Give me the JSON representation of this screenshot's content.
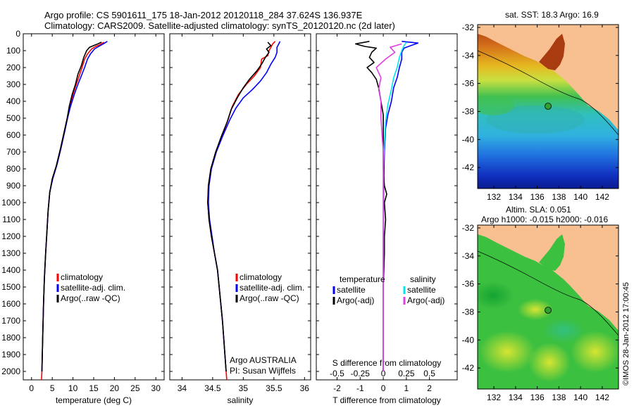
{
  "header": {
    "title_line1": "Argo profile: CS 5901611_175 18-Jan-2012 20120118_284 37.624S 136.937E",
    "title_line2": "Climatology: CARS2009. Satellite-adjusted climatology: synTS_20120120.nc (2d later)"
  },
  "watermark": "©IMOS 28-Jan-2012 17:00:45",
  "colors": {
    "climatology": "#ff0000",
    "satellite": "#0000ff",
    "argo": "#000000",
    "sal_satellite": "#00e5ee",
    "sal_argo": "#e040e0",
    "land": "#f8c090"
  },
  "depth_ticks": [
    0,
    100,
    200,
    300,
    400,
    500,
    600,
    700,
    800,
    900,
    1000,
    1100,
    1200,
    1300,
    1400,
    1500,
    1600,
    1700,
    1800,
    1900,
    2000
  ],
  "chart_data": [
    {
      "type": "line",
      "id": "temperature",
      "xlabel": "temperature (deg C)",
      "ylabel": "",
      "xlim": [
        -2,
        32
      ],
      "ylim": [
        2050,
        0
      ],
      "xticks": [
        0,
        5,
        10,
        15,
        20,
        25,
        30
      ],
      "legend": [
        "climatology",
        "satellite-adj. clim.",
        "Argo(..raw -QC)"
      ],
      "legend_position": "lower-center",
      "series": [
        {
          "name": "climatology",
          "color": "#ff0000",
          "points": [
            [
              17.5,
              50
            ],
            [
              16.5,
              65
            ],
            [
              15.5,
              75
            ],
            [
              14.5,
              90
            ],
            [
              13.5,
              120
            ],
            [
              12.8,
              150
            ],
            [
              12.2,
              200
            ],
            [
              11.5,
              250
            ],
            [
              10.8,
              300
            ],
            [
              10.0,
              360
            ],
            [
              9.2,
              430
            ],
            [
              8.6,
              500
            ],
            [
              7.9,
              580
            ],
            [
              7.0,
              680
            ],
            [
              6.0,
              780
            ],
            [
              5.0,
              860
            ],
            [
              4.4,
              940
            ],
            [
              4.0,
              1050
            ],
            [
              3.7,
              1180
            ],
            [
              3.4,
              1300
            ],
            [
              3.1,
              1450
            ],
            [
              2.9,
              1600
            ],
            [
              2.7,
              1800
            ],
            [
              2.5,
              2000
            ],
            [
              2.4,
              2050
            ]
          ]
        },
        {
          "name": "satellite-adj. clim.",
          "color": "#0000ff",
          "points": [
            [
              18.3,
              45
            ],
            [
              17.3,
              60
            ],
            [
              16.2,
              75
            ],
            [
              15.2,
              90
            ],
            [
              14.2,
              120
            ],
            [
              13.5,
              150
            ],
            [
              12.8,
              200
            ],
            [
              12.0,
              250
            ],
            [
              11.2,
              300
            ],
            [
              10.3,
              360
            ],
            [
              9.4,
              430
            ],
            [
              8.7,
              500
            ],
            [
              8.0,
              580
            ],
            [
              7.1,
              680
            ],
            [
              6.1,
              780
            ],
            [
              5.1,
              860
            ],
            [
              4.4,
              940
            ],
            [
              4.0,
              1050
            ],
            [
              3.7,
              1180
            ],
            [
              3.4,
              1300
            ],
            [
              3.1,
              1450
            ],
            [
              2.9,
              1600
            ],
            [
              2.7,
              1800
            ],
            [
              2.5,
              2000
            ]
          ]
        },
        {
          "name": "Argo(..raw -QC)",
          "color": "#000000",
          "points": [
            [
              16.9,
              50
            ],
            [
              16.0,
              60
            ],
            [
              15.0,
              70
            ],
            [
              14.0,
              80
            ],
            [
              13.3,
              100
            ],
            [
              12.6,
              140
            ],
            [
              12.0,
              190
            ],
            [
              11.2,
              240
            ],
            [
              10.6,
              300
            ],
            [
              9.8,
              360
            ],
            [
              9.1,
              430
            ],
            [
              8.6,
              500
            ],
            [
              7.9,
              580
            ],
            [
              7.0,
              680
            ],
            [
              6.0,
              780
            ],
            [
              5.0,
              860
            ],
            [
              4.4,
              940
            ],
            [
              4.0,
              1050
            ],
            [
              3.7,
              1180
            ],
            [
              3.4,
              1300
            ],
            [
              3.1,
              1450
            ],
            [
              2.9,
              1600
            ],
            [
              2.7,
              1800
            ],
            [
              2.5,
              2000
            ]
          ]
        }
      ]
    },
    {
      "type": "line",
      "id": "salinity",
      "xlabel": "salinity",
      "ylabel": "",
      "xlim": [
        33.8,
        36.1
      ],
      "ylim": [
        2050,
        0
      ],
      "xticks": [
        34,
        34.5,
        35,
        35.5,
        36
      ],
      "xtick_labels": [
        "34",
        "34.5",
        "35",
        "35.5",
        "36"
      ],
      "legend": [
        "climatology",
        "satellite-adj. clim.",
        "Argo(..raw -QC)"
      ],
      "legend_position": "lower-right",
      "annotation": [
        "Argo AUSTRALIA",
        "PI: Susan Wijffels"
      ],
      "series": [
        {
          "name": "climatology",
          "color": "#ff0000",
          "points": [
            [
              35.52,
              45
            ],
            [
              35.48,
              60
            ],
            [
              35.45,
              80
            ],
            [
              35.42,
              100
            ],
            [
              35.4,
              130
            ],
            [
              35.3,
              150
            ],
            [
              35.28,
              200
            ],
            [
              35.18,
              250
            ],
            [
              35.05,
              300
            ],
            [
              34.92,
              360
            ],
            [
              34.82,
              430
            ],
            [
              34.76,
              500
            ],
            [
              34.66,
              600
            ],
            [
              34.55,
              700
            ],
            [
              34.47,
              800
            ],
            [
              34.43,
              900
            ],
            [
              34.42,
              1000
            ],
            [
              34.44,
              1100
            ],
            [
              34.48,
              1200
            ],
            [
              34.53,
              1300
            ],
            [
              34.58,
              1400
            ],
            [
              34.62,
              1550
            ],
            [
              34.66,
              1700
            ],
            [
              34.69,
              1850
            ],
            [
              34.72,
              2000
            ],
            [
              34.73,
              2050
            ]
          ]
        },
        {
          "name": "satellite-adj. clim.",
          "color": "#0000ff",
          "points": [
            [
              35.6,
              45
            ],
            [
              35.58,
              60
            ],
            [
              35.55,
              80
            ],
            [
              35.55,
              110
            ],
            [
              35.52,
              140
            ],
            [
              35.45,
              180
            ],
            [
              35.38,
              230
            ],
            [
              35.28,
              280
            ],
            [
              35.15,
              330
            ],
            [
              35.0,
              380
            ],
            [
              34.88,
              440
            ],
            [
              34.78,
              510
            ],
            [
              34.67,
              600
            ],
            [
              34.56,
              700
            ],
            [
              34.48,
              800
            ],
            [
              34.44,
              900
            ],
            [
              34.43,
              1000
            ],
            [
              34.45,
              1100
            ],
            [
              34.49,
              1200
            ],
            [
              34.53,
              1300
            ],
            [
              34.58,
              1400
            ],
            [
              34.62,
              1550
            ],
            [
              34.66,
              1700
            ],
            [
              34.69,
              1850
            ],
            [
              34.72,
              2000
            ]
          ]
        },
        {
          "name": "Argo(..raw -QC)",
          "color": "#000000",
          "points": [
            [
              35.4,
              50
            ],
            [
              35.45,
              70
            ],
            [
              35.38,
              90
            ],
            [
              35.42,
              110
            ],
            [
              35.36,
              140
            ],
            [
              35.3,
              180
            ],
            [
              35.22,
              220
            ],
            [
              35.1,
              270
            ],
            [
              35.0,
              320
            ],
            [
              34.9,
              380
            ],
            [
              34.8,
              450
            ],
            [
              34.74,
              520
            ],
            [
              34.64,
              610
            ],
            [
              34.55,
              700
            ],
            [
              34.47,
              800
            ],
            [
              34.43,
              900
            ],
            [
              34.42,
              1000
            ],
            [
              34.44,
              1100
            ],
            [
              34.48,
              1200
            ],
            [
              34.53,
              1300
            ],
            [
              34.58,
              1400
            ],
            [
              34.62,
              1550
            ],
            [
              34.66,
              1700
            ],
            [
              34.69,
              1850
            ],
            [
              34.72,
              2000
            ]
          ]
        }
      ]
    },
    {
      "type": "line",
      "id": "difference",
      "xlabel": "T difference from climatology",
      "xlabel_top": "S difference from climatology",
      "xlim": [
        -2.9,
        3.2
      ],
      "ylim": [
        2050,
        0
      ],
      "xticks": [
        -2,
        -1,
        0,
        1,
        2
      ],
      "xticks_top": [
        -0.5,
        -0.25,
        0,
        0.25,
        0.5
      ],
      "legend": [
        {
          "heading": "temperature",
          "items": [
            "satellite",
            "Argo(-adj)"
          ]
        },
        {
          "heading": "salinity",
          "items": [
            "satellite",
            "Argo(-adj)"
          ]
        }
      ],
      "series": [
        {
          "name": "temperature satellite",
          "color": "#0000ff",
          "points": [
            [
              0.8,
              45
            ],
            [
              1.5,
              55
            ],
            [
              1.2,
              70
            ],
            [
              0.9,
              85
            ],
            [
              0.8,
              110
            ],
            [
              0.8,
              150
            ],
            [
              0.7,
              200
            ],
            [
              0.6,
              260
            ],
            [
              0.45,
              320
            ],
            [
              0.35,
              400
            ],
            [
              0.2,
              480
            ],
            [
              0.1,
              560
            ],
            [
              0.05,
              700
            ],
            [
              0.02,
              900
            ],
            [
              0.0,
              1200
            ],
            [
              0.0,
              2000
            ]
          ]
        },
        {
          "name": "temperature Argo(-adj)",
          "color": "#000000",
          "points": [
            [
              -0.6,
              45
            ],
            [
              -1.2,
              60
            ],
            [
              -0.8,
              75
            ],
            [
              -0.3,
              85
            ],
            [
              -0.5,
              110
            ],
            [
              -0.6,
              140
            ],
            [
              -0.4,
              170
            ],
            [
              -0.7,
              200
            ],
            [
              -0.5,
              230
            ],
            [
              -0.3,
              270
            ],
            [
              -0.2,
              320
            ],
            [
              -0.1,
              400
            ],
            [
              0.0,
              480
            ],
            [
              0.0,
              600
            ],
            [
              0.0,
              800
            ],
            [
              0.05,
              900
            ],
            [
              0.15,
              950
            ],
            [
              0.05,
              1000
            ],
            [
              0.1,
              1100
            ],
            [
              0.05,
              1200
            ],
            [
              0.05,
              1300
            ],
            [
              0.0,
              1500
            ],
            [
              0.0,
              2000
            ]
          ]
        },
        {
          "name": "salinity satellite",
          "color": "#00e5ee",
          "points": [
            [
              1.0,
              50
            ],
            [
              0.9,
              70
            ],
            [
              0.8,
              100
            ],
            [
              0.7,
              140
            ],
            [
              0.6,
              200
            ],
            [
              0.45,
              260
            ],
            [
              0.35,
              330
            ],
            [
              0.2,
              420
            ],
            [
              0.1,
              520
            ],
            [
              0.05,
              650
            ],
            [
              0.0,
              800
            ],
            [
              0.0,
              2000
            ]
          ]
        },
        {
          "name": "salinity Argo(-adj)",
          "color": "#e040e0",
          "points": [
            [
              0.8,
              60
            ],
            [
              0.3,
              80
            ],
            [
              0.5,
              110
            ],
            [
              0.1,
              150
            ],
            [
              -0.3,
              200
            ],
            [
              -0.1,
              260
            ],
            [
              -0.2,
              330
            ],
            [
              -0.1,
              400
            ],
            [
              -0.1,
              500
            ],
            [
              -0.05,
              600
            ],
            [
              0.0,
              700
            ],
            [
              0.0,
              2000
            ]
          ]
        }
      ]
    },
    {
      "type": "heatmap",
      "id": "sst_map",
      "title": "sat. SST: 18.3 Argo: 16.9",
      "xlim": [
        130.5,
        143.5
      ],
      "ylim": [
        -43.5,
        -31.8
      ],
      "xticks": [
        132,
        134,
        136,
        138,
        140,
        142
      ],
      "yticks": [
        -32,
        -34,
        -36,
        -38,
        -40,
        -42
      ],
      "marker": {
        "lon": 136.937,
        "lat": -37.624
      }
    },
    {
      "type": "heatmap",
      "id": "sla_map",
      "title": "Altim. SLA: 0.051",
      "subtitle": "Argo h1000: -0.015 h2000: -0.016",
      "xlim": [
        130.5,
        143.5
      ],
      "ylim": [
        -43.5,
        -31.8
      ],
      "xticks": [
        132,
        134,
        136,
        138,
        140,
        142
      ],
      "yticks": [
        -32,
        -34,
        -36,
        -38,
        -40,
        -42
      ],
      "marker": {
        "lon": 136.937,
        "lat": -37.624
      }
    }
  ]
}
